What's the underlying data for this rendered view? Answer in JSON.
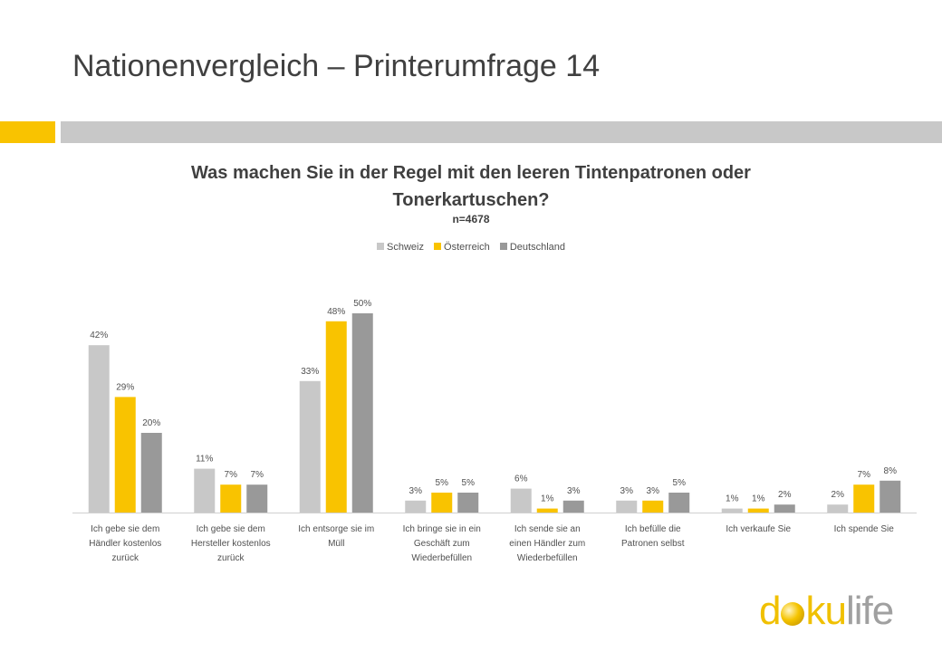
{
  "slide": {
    "title": "Nationenvergleich – Printerumfrage 14",
    "colors": {
      "accent_yellow": "#f9c300",
      "accent_gray": "#c8c8c8"
    }
  },
  "logo": {
    "part1": "d",
    "part2": "ku",
    "part3": "life",
    "colors": {
      "d_ku": "#f0c000",
      "life": "#a0a0a0"
    }
  },
  "chart_data": {
    "type": "bar",
    "title_line1": "Was machen Sie in der Regel mit den leeren Tintenpatronen oder",
    "title_line2": "Tonerkartuschen?",
    "subtitle": "n=4678",
    "legend_position": "top",
    "grid": false,
    "ylim": [
      0,
      60
    ],
    "categories": [
      [
        "Ich gebe sie dem",
        "Händler kostenlos",
        "zurück"
      ],
      [
        "Ich gebe sie dem",
        "Hersteller kostenlos",
        "zurück"
      ],
      [
        "Ich entsorge sie im",
        "Müll"
      ],
      [
        "Ich bringe sie in ein",
        "Geschäft zum",
        "Wiederbefüllen"
      ],
      [
        "Ich sende sie an",
        "einen Händler zum",
        "Wiederbefüllen"
      ],
      [
        "Ich befülle die",
        "Patronen selbst"
      ],
      [
        "Ich verkaufe Sie"
      ],
      [
        "Ich spende Sie"
      ]
    ],
    "series": [
      {
        "name": "Schweiz",
        "color": "#c8c8c8",
        "values": [
          42,
          11,
          33,
          3,
          6,
          3,
          1,
          2
        ]
      },
      {
        "name": "Österreich",
        "color": "#f9c300",
        "values": [
          29,
          7,
          48,
          5,
          1,
          3,
          1,
          7
        ]
      },
      {
        "name": "Deutschland",
        "color": "#999999",
        "values": [
          20,
          7,
          50,
          5,
          3,
          5,
          2,
          8
        ]
      }
    ],
    "value_suffix": "%"
  }
}
